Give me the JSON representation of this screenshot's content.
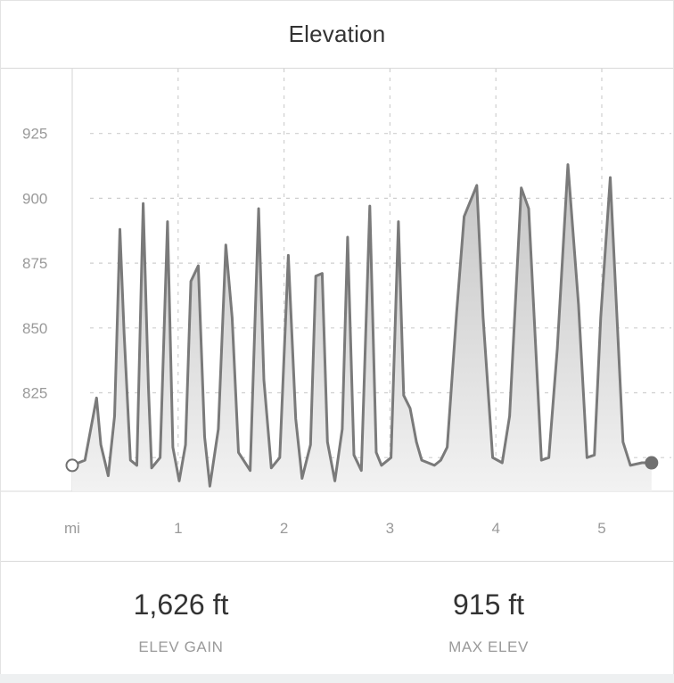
{
  "header": {
    "title": "Elevation"
  },
  "stats": [
    {
      "value": "1,626 ft",
      "label": "ELEV GAIN"
    },
    {
      "value": "915 ft",
      "label": "MAX ELEV"
    }
  ],
  "colors": {
    "line": "#7a7a7a",
    "fill_top": "#c8c8c8",
    "grid": "#cfcfcf",
    "tick_text": "#9a9a9a"
  },
  "chart_data": {
    "type": "area",
    "xlabel": "mi",
    "ylabel": "",
    "title": "",
    "xlim": [
      -0.05,
      5.55
    ],
    "ylim": [
      787,
      950
    ],
    "y_ticks": [
      925,
      900,
      875,
      850,
      825
    ],
    "x_ticks": [
      {
        "value": 0,
        "label": "mi"
      },
      {
        "value": 1,
        "label": "1"
      },
      {
        "value": 2,
        "label": "2"
      },
      {
        "value": 3,
        "label": "3"
      },
      {
        "value": 4,
        "label": "4"
      },
      {
        "value": 5,
        "label": "5"
      }
    ],
    "grid": true,
    "markers": {
      "start": "hollow-circle",
      "end": "filled-circle"
    },
    "series": [
      {
        "x": [
          0.0,
          0.12,
          0.23,
          0.27,
          0.34,
          0.4,
          0.45,
          0.49,
          0.55,
          0.61,
          0.67,
          0.72,
          0.75,
          0.83,
          0.9,
          0.95,
          1.01,
          1.07,
          1.12,
          1.19,
          1.25,
          1.3,
          1.38,
          1.45,
          1.51,
          1.57,
          1.68,
          1.76,
          1.81,
          1.88,
          1.96,
          2.04,
          2.11,
          2.17,
          2.25,
          2.3,
          2.36,
          2.41,
          2.48,
          2.55,
          2.6,
          2.66,
          2.73,
          2.81,
          2.87,
          2.92,
          3.01,
          3.08,
          3.13,
          3.19,
          3.25,
          3.3,
          3.42,
          3.48,
          3.54,
          3.63,
          3.7,
          3.82,
          3.88,
          3.97,
          4.06,
          4.13,
          4.24,
          4.31,
          4.43,
          4.5,
          4.58,
          4.68,
          4.78,
          4.86,
          4.93,
          4.99,
          5.08,
          5.2,
          5.27,
          5.38,
          5.47
        ],
        "y": [
          797,
          799,
          823,
          805,
          793,
          816,
          888,
          848,
          799,
          797,
          898,
          827,
          796,
          800,
          891,
          804,
          791,
          805,
          868,
          874,
          808,
          789,
          811,
          882,
          854,
          802,
          795,
          896,
          830,
          796,
          800,
          878,
          815,
          792,
          805,
          870,
          871,
          806,
          791,
          811,
          885,
          801,
          795,
          897,
          802,
          797,
          800,
          891,
          824,
          819,
          806,
          799,
          797,
          799,
          804,
          856,
          893,
          905,
          854,
          800,
          798,
          816,
          904,
          896,
          799,
          800,
          842,
          913,
          859,
          800,
          801,
          854,
          908,
          806,
          797,
          798,
          798
        ]
      }
    ]
  }
}
